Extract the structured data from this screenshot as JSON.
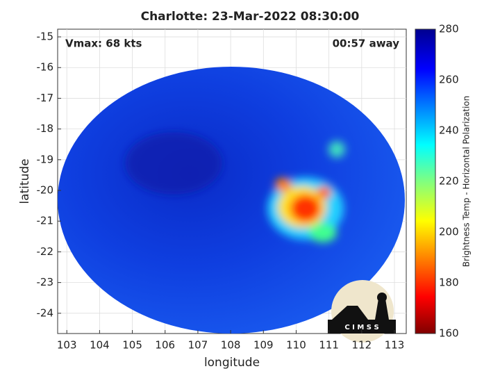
{
  "chart_data": {
    "type": "image-map",
    "title": "Charlotte: 23-Mar-2022 08:30:00",
    "annotations": [
      "Vmax: 68 kts",
      "00:57 away"
    ],
    "xlabel": "longitude",
    "ylabel": "latitude",
    "xlim": [
      102.72,
      113.36
    ],
    "xticks": [
      103,
      104,
      105,
      106,
      107,
      108,
      109,
      110,
      111,
      112,
      113
    ],
    "ylim": [
      -24.66,
      -14.75
    ],
    "yticks": [
      -15,
      -16,
      -17,
      -18,
      -19,
      -20,
      -21,
      -22,
      -23,
      -24
    ],
    "grid": true,
    "colorbar": {
      "label": "Brightness Temp - Horizontal Polarization",
      "lim": [
        160,
        280
      ],
      "ticks": [
        160,
        180,
        200,
        220,
        240,
        260,
        280
      ]
    },
    "logo": "C I M S S"
  }
}
